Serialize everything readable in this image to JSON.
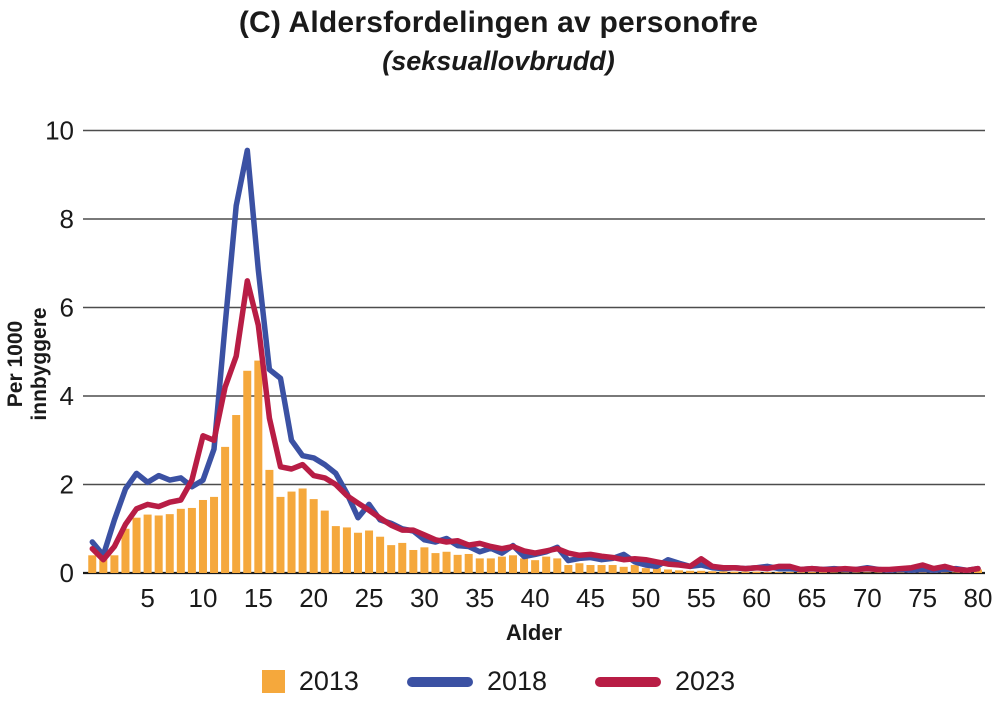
{
  "chart_data": {
    "type": "combo-bar-line",
    "title": "(C) Aldersfordelingen av personofre",
    "subtitle": "(seksuallovbrudd)",
    "xlabel": "Alder",
    "ylabel": "Per 1000 innbyggere",
    "ylim": [
      0,
      10
    ],
    "yticks": [
      0,
      2,
      4,
      6,
      8,
      10
    ],
    "xticks": [
      5,
      10,
      15,
      20,
      25,
      30,
      35,
      40,
      45,
      50,
      55,
      60,
      65,
      70,
      75,
      80
    ],
    "grid": "horizontal",
    "legend_position": "bottom",
    "x_range_ages": [
      0,
      80
    ],
    "colors": {
      "bar_2013": "#F5A83C",
      "line_2018": "#3B51A3",
      "line_2023": "#B81D45",
      "gridline": "#4d4d4d",
      "axis": "#1a1a1a",
      "text": "#1a1a1a"
    },
    "series": [
      {
        "name": "2013",
        "type": "bar",
        "values": [
          0.4,
          0.4,
          0.4,
          1.0,
          1.25,
          1.32,
          1.3,
          1.33,
          1.45,
          1.47,
          1.65,
          1.72,
          2.85,
          3.57,
          4.57,
          4.8,
          2.33,
          1.72,
          1.84,
          1.91,
          1.67,
          1.41,
          1.06,
          1.03,
          0.91,
          0.96,
          0.82,
          0.63,
          0.68,
          0.52,
          0.58,
          0.45,
          0.48,
          0.41,
          0.43,
          0.33,
          0.33,
          0.37,
          0.4,
          0.33,
          0.29,
          0.37,
          0.33,
          0.18,
          0.22,
          0.18,
          0.18,
          0.18,
          0.14,
          0.18,
          0.11,
          0.11,
          0.08,
          0.06,
          0.05,
          0.05,
          0.04,
          0.04,
          0.03,
          0.03,
          0.03,
          0.02,
          0.02,
          0.02,
          0.02,
          0.02,
          0.02,
          0.01,
          0.01,
          0.01,
          0.01,
          0.01,
          0.01,
          0.01,
          0.01,
          0.01,
          0.01,
          0.01,
          0.01,
          0.01,
          0.08
        ]
      },
      {
        "name": "2018",
        "type": "line",
        "values": [
          0.7,
          0.4,
          1.2,
          1.9,
          2.25,
          2.05,
          2.2,
          2.1,
          2.15,
          1.95,
          2.1,
          2.8,
          5.6,
          8.3,
          9.55,
          6.85,
          4.6,
          4.4,
          3.0,
          2.65,
          2.6,
          2.45,
          2.25,
          1.8,
          1.25,
          1.55,
          1.2,
          1.12,
          1.0,
          0.95,
          0.75,
          0.7,
          0.78,
          0.62,
          0.6,
          0.48,
          0.56,
          0.45,
          0.62,
          0.37,
          0.42,
          0.48,
          0.58,
          0.28,
          0.33,
          0.35,
          0.3,
          0.33,
          0.42,
          0.25,
          0.18,
          0.15,
          0.3,
          0.22,
          0.15,
          0.18,
          0.12,
          0.1,
          0.12,
          0.1,
          0.12,
          0.15,
          0.1,
          0.1,
          0.08,
          0.1,
          0.08,
          0.1,
          0.08,
          0.08,
          0.12,
          0.08,
          0.06,
          0.08,
          0.06,
          0.08,
          0.06,
          0.08,
          0.1,
          0.06,
          0.1
        ]
      },
      {
        "name": "2023",
        "type": "line",
        "values": [
          0.55,
          0.3,
          0.6,
          1.1,
          1.45,
          1.55,
          1.5,
          1.6,
          1.65,
          2.1,
          3.1,
          3.0,
          4.2,
          4.9,
          6.6,
          5.6,
          3.5,
          2.4,
          2.35,
          2.45,
          2.2,
          2.15,
          2.0,
          1.75,
          1.58,
          1.42,
          1.24,
          1.08,
          0.97,
          0.97,
          0.86,
          0.75,
          0.7,
          0.73,
          0.63,
          0.67,
          0.6,
          0.55,
          0.6,
          0.5,
          0.45,
          0.5,
          0.55,
          0.45,
          0.4,
          0.42,
          0.38,
          0.35,
          0.3,
          0.32,
          0.3,
          0.25,
          0.2,
          0.18,
          0.15,
          0.32,
          0.15,
          0.12,
          0.12,
          0.1,
          0.12,
          0.1,
          0.15,
          0.15,
          0.08,
          0.1,
          0.08,
          0.08,
          0.1,
          0.08,
          0.1,
          0.08,
          0.08,
          0.1,
          0.12,
          0.18,
          0.1,
          0.15,
          0.08,
          0.06,
          0.1
        ]
      }
    ]
  },
  "legend": {
    "items": [
      {
        "label": "2013"
      },
      {
        "label": "2018"
      },
      {
        "label": "2023"
      }
    ]
  }
}
